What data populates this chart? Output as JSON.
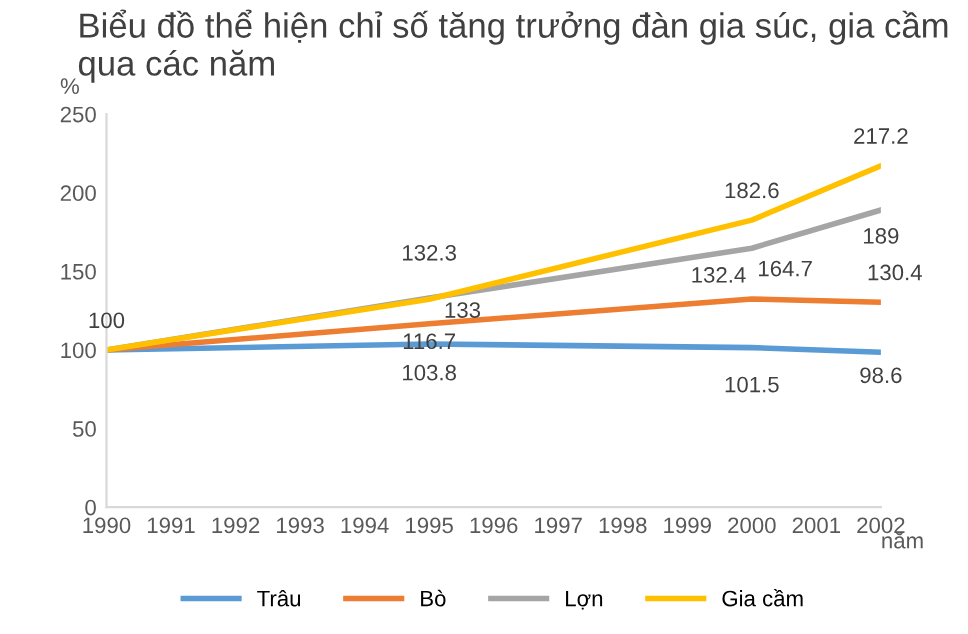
{
  "chart_data": {
    "type": "line",
    "title": "Biểu đồ thể hiện chỉ số tăng trưởng đàn gia súc, gia cầm qua các năm",
    "xlabel": "năm",
    "ylabel": "%",
    "x": [
      1990,
      1995,
      2000,
      2002
    ],
    "xlim": [
      1990,
      2002
    ],
    "xticks": [
      1990,
      1991,
      1992,
      1993,
      1994,
      1995,
      1996,
      1997,
      1998,
      1999,
      2000,
      2001,
      2002
    ],
    "ylim": [
      0,
      250
    ],
    "yticks": [
      0,
      50,
      100,
      150,
      200,
      250
    ],
    "grid": false,
    "legend": "bottom",
    "marker": "none",
    "line_style": "solid",
    "series": [
      {
        "name": "Trâu",
        "color": "#5b9bd5",
        "values": [
          100,
          103.8,
          101.5,
          98.6
        ],
        "value_labels": [
          null,
          "103.8",
          "101.5",
          "98.6"
        ]
      },
      {
        "name": "Bò",
        "color": "#ed7d31",
        "values": [
          100,
          116.7,
          132.4,
          130.4
        ],
        "value_labels": [
          null,
          "116.7",
          "132.4",
          "130.4"
        ]
      },
      {
        "name": "Lợn",
        "color": "#a5a5a5",
        "values": [
          100,
          133,
          164.7,
          189
        ],
        "value_labels": [
          null,
          "133",
          "164.7",
          "189"
        ]
      },
      {
        "name": "Gia cầm",
        "color": "#ffc000",
        "values": [
          100,
          132.3,
          182.6,
          217.2
        ],
        "value_labels": [
          "100",
          "132.3",
          "182.6",
          "217.2"
        ]
      }
    ]
  }
}
